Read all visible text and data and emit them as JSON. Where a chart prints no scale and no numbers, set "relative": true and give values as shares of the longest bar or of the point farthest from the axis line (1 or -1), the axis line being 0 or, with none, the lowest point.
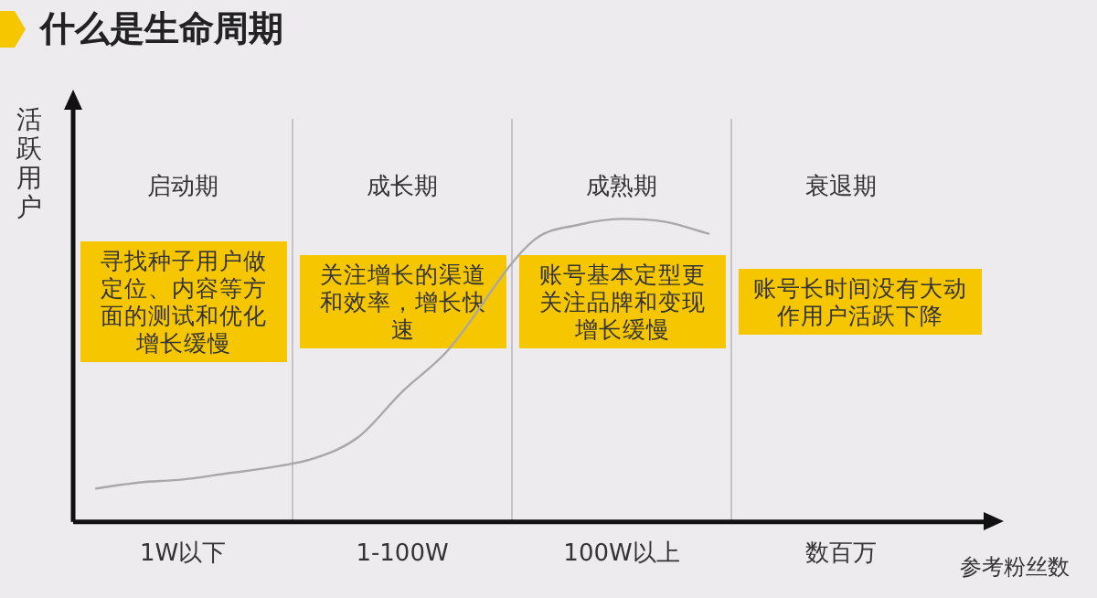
{
  "chart_data": {
    "type": "line",
    "title": "什么是生命周期",
    "xlabel": "参考粉丝数",
    "ylabel": "活跃用户",
    "relative": true,
    "categories": [
      null,
      null,
      "1W以下",
      null,
      null,
      null,
      null,
      "1-100W",
      null,
      null,
      null,
      null,
      "100W以上",
      null,
      null,
      null,
      null,
      "数百万",
      null,
      null
    ],
    "series": [
      {
        "color": "#a8a8a8",
        "values": [
          0.11,
          0.13,
          0.14,
          0.16,
          0.18,
          0.21,
          0.28,
          0.43,
          0.56,
          null,
          0.93,
          0.98,
          1,
          0.99,
          0.95,
          null,
          null,
          null,
          null,
          null
        ]
      }
    ],
    "annotations": [
      "启动期",
      "寻找种子用户做定位、内容等方面的测试和优化增长缓慢",
      "成长期",
      "关注增长的渠道和效率，增长快速",
      "成熟期",
      "账号基本定型更关注品牌和变现增长缓慢",
      "衰退期",
      "账号长时间没有大动作用户活跃下降"
    ],
    "legend": false,
    "grid": "x",
    "marker": "none",
    "line_style": "solid"
  }
}
